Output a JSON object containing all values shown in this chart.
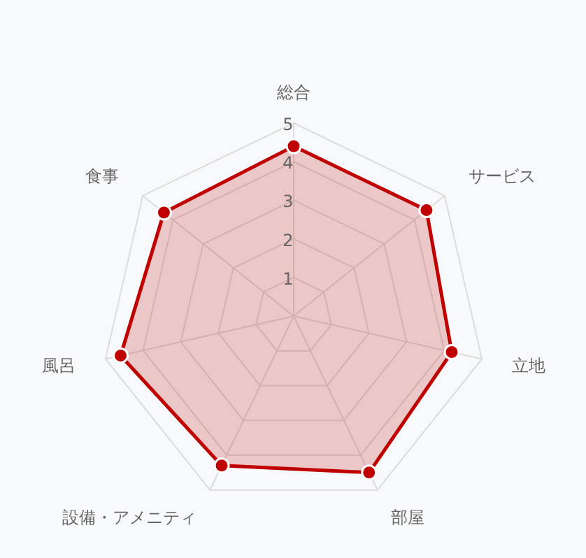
{
  "chart_data": {
    "type": "radar",
    "categories": [
      "総合",
      "サービス",
      "立地",
      "部屋",
      "設備・アメニティ",
      "風呂",
      "食事"
    ],
    "series": [
      {
        "color": "#c00000",
        "values": [
          4.4,
          4.4,
          4.2,
          4.5,
          4.3,
          4.6,
          4.3
        ]
      }
    ],
    "ylim": [
      0,
      5
    ],
    "yticks": [
      1,
      2,
      3,
      4,
      5
    ],
    "grid": true,
    "marker": "circle"
  }
}
